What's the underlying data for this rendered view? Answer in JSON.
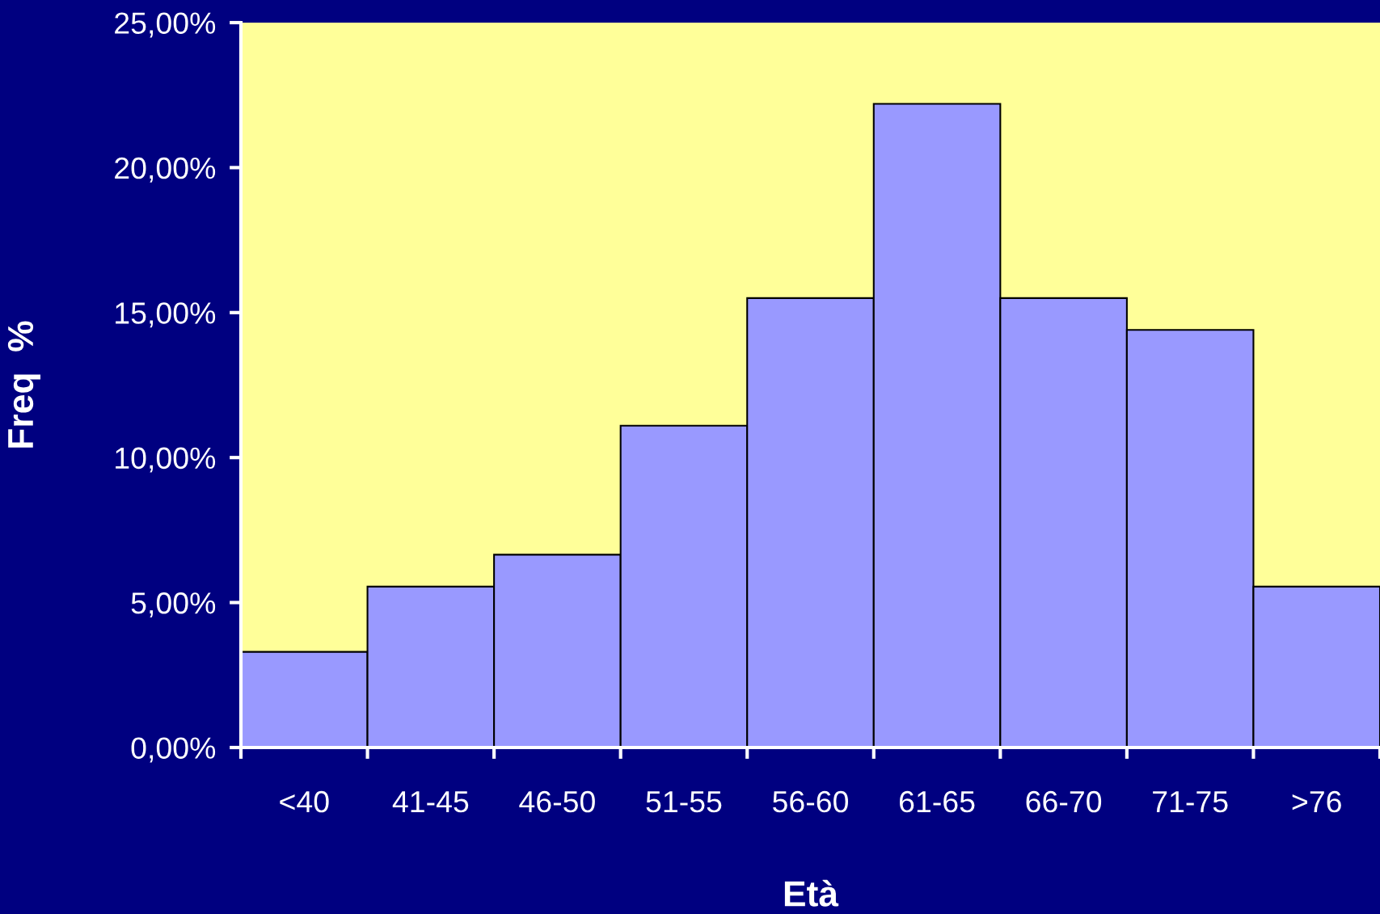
{
  "chart_data": {
    "type": "bar",
    "xlabel": "Età",
    "ylabel": "Freq  %",
    "categories": [
      "<40",
      "41-45",
      "46-50",
      "51-55",
      "56-60",
      "61-65",
      "66-70",
      "71-75",
      ">76"
    ],
    "values": [
      3.3,
      5.55,
      6.65,
      11.1,
      15.5,
      22.2,
      15.5,
      14.4,
      5.55
    ],
    "color": "#9999ff",
    "ylim": [
      0,
      25
    ],
    "yticks": [
      {
        "value": 0,
        "label": "0,00%"
      },
      {
        "value": 5,
        "label": "5,00%"
      },
      {
        "value": 10,
        "label": "10,00%"
      },
      {
        "value": 15,
        "label": "15,00%"
      },
      {
        "value": 20,
        "label": "20,00%"
      },
      {
        "value": 25,
        "label": "25,00%"
      }
    ],
    "grid": false,
    "legend": false
  }
}
